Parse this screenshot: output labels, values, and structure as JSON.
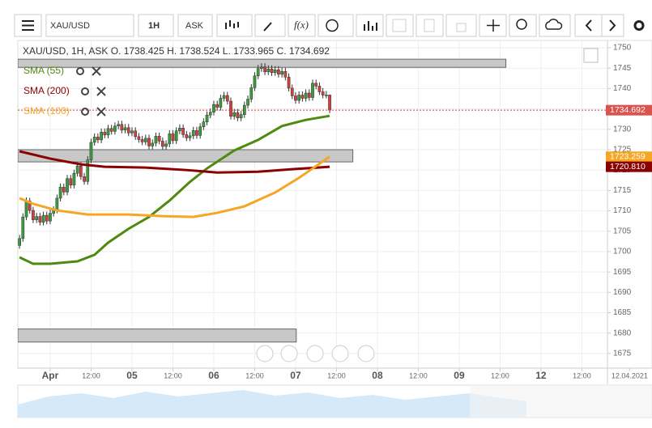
{
  "toolbar": {
    "symbol": "XAU/USD",
    "interval": "1H",
    "price_side": "ASK",
    "fx": "f(x)"
  },
  "chart_data": {
    "type": "candlestick",
    "header": "XAU/USD, 1H, ASK   O. 1738.425 H. 1738.524 L. 1733.965 C. 1734.692",
    "up_color": "#3c9a3c",
    "down_color": "#d23f3f",
    "x": [
      -9,
      -8,
      -7,
      -6,
      -5,
      -4,
      -3,
      -2,
      -1,
      0,
      1,
      2,
      3,
      4,
      5,
      6,
      7,
      8,
      9,
      10,
      11,
      12,
      13,
      14,
      15,
      16,
      17,
      18,
      19,
      20,
      21,
      22,
      23,
      24,
      25,
      26,
      27,
      28,
      29,
      30,
      31,
      32,
      33,
      34,
      35,
      36,
      37,
      38,
      39,
      40,
      41,
      42,
      43,
      44,
      45,
      46,
      47,
      48,
      49,
      50,
      51,
      52,
      53,
      54,
      55,
      56,
      57,
      58,
      59,
      60,
      61,
      62,
      63,
      64,
      65,
      66,
      67,
      68,
      69,
      70,
      71,
      72,
      73,
      74,
      75,
      76,
      77,
      78,
      79,
      80,
      81,
      82
    ],
    "open": [
      1701.5,
      1703.2,
      1708.5,
      1712.4,
      1710.1,
      1707.8,
      1708.6,
      1707.2,
      1708.9,
      1707.5,
      1709.4,
      1710.2,
      1713.1,
      1715.8,
      1714.6,
      1717.9,
      1716.3,
      1719.2,
      1721.0,
      1718.4,
      1717.2,
      1722.5,
      1726.8,
      1728.1,
      1727.4,
      1729.3,
      1728.6,
      1730.2,
      1729.5,
      1730.8,
      1731.2,
      1729.8,
      1730.4,
      1729.1,
      1729.6,
      1728.2,
      1727.5,
      1726.9,
      1727.8,
      1725.9,
      1726.6,
      1728.3,
      1727.1,
      1725.8,
      1726.4,
      1728.9,
      1727.2,
      1729.6,
      1730.3,
      1728.7,
      1727.9,
      1728.4,
      1729.7,
      1728.5,
      1730.6,
      1731.8,
      1733.5,
      1734.2,
      1736.1,
      1735.4,
      1737.6,
      1738.3,
      1736.9,
      1733.2,
      1734.1,
      1732.8,
      1733.6,
      1735.9,
      1737.4,
      1740.2,
      1743.1,
      1744.9,
      1745.3,
      1744.1,
      1744.8,
      1743.9,
      1744.6,
      1743.5,
      1744.2,
      1742.8,
      1740.1,
      1738.2,
      1737.1,
      1738.4,
      1737.6,
      1738.9,
      1737.8,
      1741.3,
      1740.6,
      1739.2,
      1738.4,
      1738.425
    ],
    "high": [
      1704.1,
      1709.4,
      1713.3,
      1713.2,
      1711.0,
      1709.5,
      1709.5,
      1709.8,
      1709.8,
      1710.3,
      1711.1,
      1714.0,
      1716.7,
      1716.7,
      1718.8,
      1718.8,
      1720.1,
      1721.9,
      1721.9,
      1719.3,
      1723.4,
      1727.7,
      1729.0,
      1729.0,
      1730.2,
      1730.2,
      1731.1,
      1731.1,
      1731.7,
      1732.1,
      1732.1,
      1731.3,
      1731.3,
      1730.5,
      1730.5,
      1729.1,
      1728.4,
      1728.7,
      1728.7,
      1727.5,
      1729.2,
      1729.2,
      1728.0,
      1727.3,
      1729.8,
      1729.8,
      1730.5,
      1731.2,
      1731.2,
      1729.6,
      1729.3,
      1730.6,
      1730.6,
      1731.5,
      1732.7,
      1734.4,
      1735.1,
      1737.0,
      1737.0,
      1738.5,
      1739.2,
      1739.2,
      1737.8,
      1735.0,
      1735.0,
      1734.5,
      1736.8,
      1738.3,
      1741.1,
      1744.0,
      1745.8,
      1746.2,
      1746.2,
      1745.7,
      1745.7,
      1745.5,
      1745.5,
      1745.1,
      1745.1,
      1743.7,
      1741.0,
      1739.1,
      1739.3,
      1739.3,
      1739.8,
      1739.8,
      1742.2,
      1742.2,
      1741.5,
      1740.1,
      1739.4,
      1738.524
    ],
    "low": [
      1700.7,
      1702.4,
      1707.7,
      1709.3,
      1707.0,
      1707.0,
      1706.4,
      1706.4,
      1706.7,
      1706.7,
      1708.6,
      1709.4,
      1712.3,
      1713.8,
      1713.8,
      1715.5,
      1715.5,
      1718.4,
      1717.6,
      1716.4,
      1716.4,
      1721.7,
      1726.0,
      1726.6,
      1726.6,
      1727.8,
      1727.8,
      1728.7,
      1728.7,
      1730.0,
      1729.0,
      1729.0,
      1728.3,
      1728.3,
      1727.4,
      1726.7,
      1726.1,
      1726.1,
      1725.1,
      1725.1,
      1725.8,
      1726.3,
      1725.0,
      1725.0,
      1725.6,
      1726.4,
      1726.4,
      1728.8,
      1727.9,
      1727.1,
      1727.1,
      1727.6,
      1727.7,
      1727.7,
      1729.8,
      1731.0,
      1732.7,
      1733.4,
      1734.6,
      1734.6,
      1736.8,
      1736.1,
      1732.4,
      1732.4,
      1732.0,
      1732.0,
      1732.8,
      1735.1,
      1736.6,
      1739.4,
      1742.3,
      1744.1,
      1743.3,
      1743.3,
      1743.1,
      1743.1,
      1742.7,
      1742.7,
      1742.0,
      1739.3,
      1737.4,
      1736.3,
      1736.3,
      1736.8,
      1736.8,
      1737.0,
      1737.0,
      1739.8,
      1738.4,
      1737.6,
      1737.6,
      1733.965
    ],
    "close": [
      1703.2,
      1708.5,
      1712.4,
      1710.1,
      1707.8,
      1708.6,
      1707.2,
      1708.9,
      1707.5,
      1709.4,
      1710.2,
      1713.1,
      1715.8,
      1714.6,
      1717.9,
      1716.3,
      1719.2,
      1721.0,
      1718.4,
      1717.2,
      1722.5,
      1726.8,
      1728.1,
      1727.4,
      1729.3,
      1728.6,
      1730.2,
      1729.5,
      1730.8,
      1731.2,
      1729.8,
      1730.4,
      1729.1,
      1729.6,
      1728.2,
      1727.5,
      1726.9,
      1727.8,
      1725.9,
      1726.6,
      1728.3,
      1727.1,
      1725.8,
      1726.4,
      1728.9,
      1727.2,
      1729.6,
      1730.3,
      1728.7,
      1727.9,
      1728.4,
      1729.7,
      1728.5,
      1730.6,
      1731.8,
      1733.5,
      1734.2,
      1736.1,
      1735.4,
      1737.6,
      1738.3,
      1736.9,
      1733.2,
      1734.1,
      1732.8,
      1733.6,
      1735.9,
      1737.4,
      1740.2,
      1743.1,
      1744.9,
      1745.3,
      1744.1,
      1744.8,
      1743.9,
      1744.6,
      1743.5,
      1744.2,
      1742.8,
      1740.1,
      1738.2,
      1737.1,
      1738.4,
      1737.6,
      1738.9,
      1737.8,
      1741.3,
      1740.6,
      1739.2,
      1738.4,
      1738.425,
      1734.692
    ],
    "series": [
      {
        "name": "SMA (55)",
        "color": "#4f8a10",
        "x": [
          -9,
          -5,
          0,
          8,
          13,
          17,
          23,
          29,
          35,
          41,
          46,
          54,
          61,
          68,
          75,
          82
        ],
        "values": [
          1698.6,
          1697.0,
          1697.0,
          1697.6,
          1699.2,
          1702.2,
          1705.6,
          1708.5,
          1712.5,
          1717.1,
          1720.4,
          1724.8,
          1727.4,
          1730.8,
          1732.3,
          1733.3
        ]
      },
      {
        "name": "SMA (200)",
        "color": "#8b0000",
        "x": [
          -9,
          0,
          9,
          16,
          28,
          40,
          49,
          61,
          71,
          82
        ],
        "values": [
          1724.6,
          1722.8,
          1721.4,
          1720.8,
          1720.6,
          1720.0,
          1719.4,
          1719.6,
          1720.2,
          1720.81
        ]
      },
      {
        "name": "SMA (100)",
        "color": "#f5a623",
        "x": [
          -9,
          -5,
          2,
          11,
          23,
          33,
          42,
          49,
          57,
          66,
          73,
          82
        ],
        "values": [
          1713.1,
          1711.7,
          1710.1,
          1709.1,
          1709.1,
          1708.7,
          1708.5,
          1709.5,
          1711.1,
          1714.5,
          1718.1,
          1723.259
        ]
      }
    ],
    "zones": [
      {
        "x": [
          -9.5,
          133.7
        ],
        "y": [
          1745.2,
          1747.2
        ]
      },
      {
        "x": [
          -9.5,
          88.8
        ],
        "y": [
          1722.0,
          1725.0
        ]
      },
      {
        "x": [
          -9.5,
          72.2
        ],
        "y": [
          1677.8,
          1681.0
        ]
      }
    ],
    "price_labels": [
      {
        "value": 1734.692,
        "label": "1734.692",
        "color": "#d9534f"
      },
      {
        "value": 1723.259,
        "label": "1723.259",
        "color": "#f5a623"
      },
      {
        "value": 1720.81,
        "label": "1720.810",
        "color": "#8b0000"
      }
    ],
    "xlim": [
      -9.5,
      163.5
    ],
    "ylim": [
      1671.4,
      1751.8
    ],
    "yticks": [
      1675,
      1680,
      1685,
      1690,
      1695,
      1700,
      1705,
      1710,
      1715,
      1720,
      1725,
      1730,
      1735,
      1740,
      1745,
      1750
    ],
    "xticks": [
      {
        "value": 0,
        "label": "Apr",
        "bold": true
      },
      {
        "value": 12,
        "label": "12:00"
      },
      {
        "value": 24,
        "label": "05",
        "bold": true
      },
      {
        "value": 36,
        "label": "12:00"
      },
      {
        "value": 48,
        "label": "06",
        "bold": true
      },
      {
        "value": 60,
        "label": "12:00"
      },
      {
        "value": 72,
        "label": "07",
        "bold": true
      },
      {
        "value": 84,
        "label": "12:00"
      },
      {
        "value": 96,
        "label": "08",
        "bold": true
      },
      {
        "value": 108,
        "label": "12:00"
      },
      {
        "value": 120,
        "label": "09",
        "bold": true
      },
      {
        "value": 132,
        "label": "12:00"
      },
      {
        "value": 144,
        "label": "12",
        "bold": true
      },
      {
        "value": 156,
        "label": "12:00"
      },
      {
        "value": 170,
        "label": "12.04.2021"
      }
    ],
    "grid": true
  }
}
